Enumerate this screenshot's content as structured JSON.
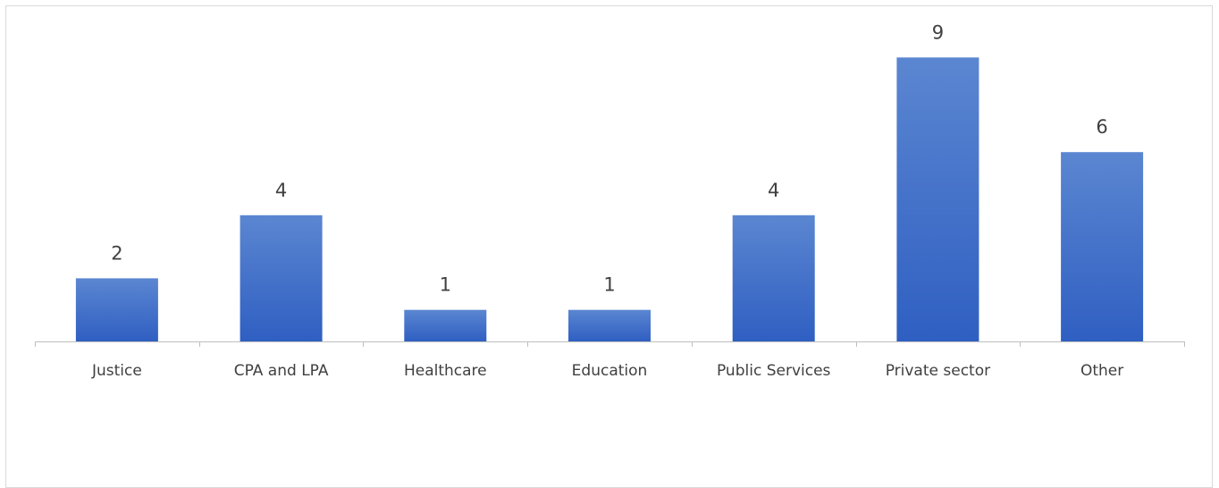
{
  "chart_data": {
    "type": "bar",
    "categories": [
      "Justice",
      "CPA and LPA",
      "Healthcare",
      "Education",
      "Public Services",
      "Private sector",
      "Other"
    ],
    "values": [
      2,
      4,
      1,
      1,
      4,
      9,
      6
    ],
    "title": "",
    "xlabel": "",
    "ylabel": "",
    "ylim": [
      0,
      9
    ],
    "grid": false,
    "legend": "none",
    "colors": {
      "bar_top": "#5b86d1",
      "bar_bottom": "#2f5fc2",
      "axis": "#bfbfbf",
      "label": "#404040"
    }
  }
}
